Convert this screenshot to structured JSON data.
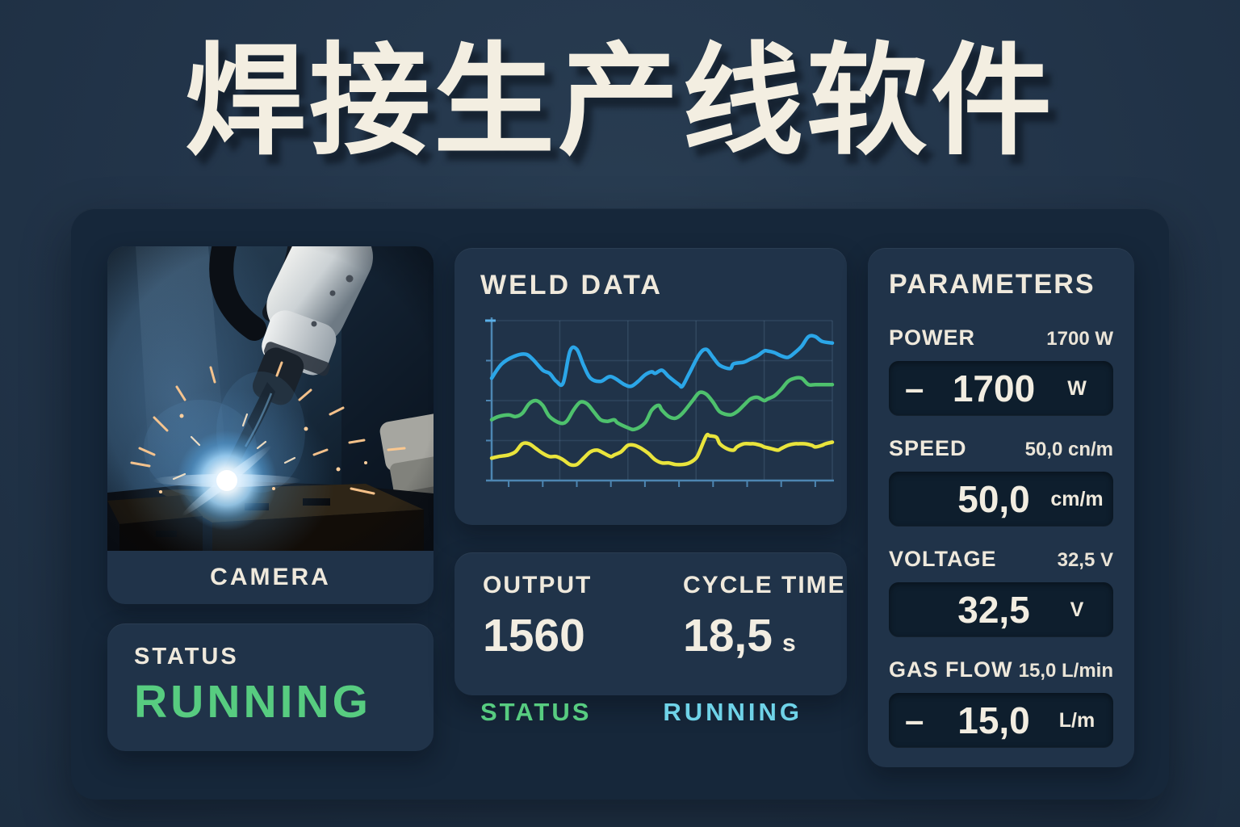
{
  "title": "焊接生产线软件",
  "colors": {
    "page_bg": "#223449",
    "panel_bg": "#16273a",
    "card_bg": "#203349",
    "input_bg": "#0e1e2d",
    "cream": "#efe9dc",
    "green": "#57cc80",
    "cyan": "#6fd3e8",
    "axis": "#4d86b2",
    "chart_blue": "#2ba6e8",
    "chart_green": "#4ec16d",
    "chart_yellow": "#e9e43c"
  },
  "camera": {
    "label": "CAMERA",
    "status_label": "STATUS",
    "status_value": "RUNNING"
  },
  "weld": {
    "title": "WELD DATA"
  },
  "chart_data": {
    "type": "line",
    "title": "WELD DATA",
    "xlabel": "",
    "ylabel": "",
    "grid": true,
    "legend_position": "none",
    "axis_tick_labels": "none (unlabeled live telemetry axes)",
    "x_range": [
      0,
      100
    ],
    "y_range_percent_of_plot_height_from_top": [
      0,
      100
    ],
    "series": [
      {
        "name": "signal-blue",
        "color": "#2ba6e8",
        "points": [
          [
            0,
            36
          ],
          [
            3,
            27
          ],
          [
            7,
            22
          ],
          [
            10,
            21
          ],
          [
            12,
            24
          ],
          [
            15,
            31
          ],
          [
            17,
            33
          ],
          [
            19,
            38
          ],
          [
            21,
            39
          ],
          [
            23,
            19
          ],
          [
            25,
            18
          ],
          [
            27,
            28
          ],
          [
            29,
            36
          ],
          [
            32,
            38
          ],
          [
            35,
            35
          ],
          [
            39,
            40
          ],
          [
            41,
            41
          ],
          [
            43,
            38
          ],
          [
            45,
            34
          ],
          [
            47,
            32
          ],
          [
            48,
            33
          ],
          [
            50,
            31
          ],
          [
            52,
            35
          ],
          [
            55,
            40
          ],
          [
            56,
            41
          ],
          [
            58,
            33
          ],
          [
            61,
            21
          ],
          [
            63,
            18
          ],
          [
            65,
            23
          ],
          [
            67,
            28
          ],
          [
            70,
            30
          ],
          [
            71,
            27
          ],
          [
            74,
            26
          ],
          [
            76,
            24
          ],
          [
            78,
            22
          ],
          [
            80,
            19
          ],
          [
            81,
            19
          ],
          [
            83,
            20
          ],
          [
            85,
            22
          ],
          [
            87,
            23
          ],
          [
            89,
            20
          ],
          [
            91,
            16
          ],
          [
            93,
            10
          ],
          [
            95,
            10
          ],
          [
            97,
            13
          ],
          [
            100,
            14
          ]
        ]
      },
      {
        "name": "signal-green",
        "color": "#4ec16d",
        "points": [
          [
            0,
            62
          ],
          [
            2,
            60
          ],
          [
            5,
            59
          ],
          [
            7,
            60
          ],
          [
            9,
            58
          ],
          [
            11,
            52
          ],
          [
            13,
            50
          ],
          [
            15,
            53
          ],
          [
            17,
            60
          ],
          [
            20,
            64
          ],
          [
            22,
            63
          ],
          [
            24,
            56
          ],
          [
            26,
            51
          ],
          [
            28,
            52
          ],
          [
            30,
            57
          ],
          [
            32,
            62
          ],
          [
            34,
            63
          ],
          [
            36,
            62
          ],
          [
            37,
            64
          ],
          [
            40,
            67
          ],
          [
            42,
            68
          ],
          [
            45,
            64
          ],
          [
            47,
            56
          ],
          [
            49,
            53
          ],
          [
            50,
            56
          ],
          [
            52,
            60
          ],
          [
            54,
            61
          ],
          [
            56,
            58
          ],
          [
            59,
            50
          ],
          [
            61,
            45
          ],
          [
            63,
            46
          ],
          [
            65,
            51
          ],
          [
            67,
            57
          ],
          [
            70,
            59
          ],
          [
            72,
            57
          ],
          [
            74,
            53
          ],
          [
            76,
            49
          ],
          [
            78,
            48
          ],
          [
            80,
            50
          ],
          [
            81,
            49
          ],
          [
            83,
            47
          ],
          [
            85,
            43
          ],
          [
            87,
            38
          ],
          [
            89,
            36
          ],
          [
            91,
            36
          ],
          [
            93,
            40
          ],
          [
            95,
            40
          ],
          [
            98,
            40
          ],
          [
            100,
            40
          ]
        ]
      },
      {
        "name": "signal-yellow",
        "color": "#e9e43c",
        "points": [
          [
            0,
            86
          ],
          [
            2,
            85
          ],
          [
            5,
            84
          ],
          [
            7,
            82
          ],
          [
            9,
            77
          ],
          [
            11,
            77
          ],
          [
            13,
            80
          ],
          [
            15,
            83
          ],
          [
            17,
            85
          ],
          [
            19,
            85
          ],
          [
            21,
            87
          ],
          [
            23,
            90
          ],
          [
            25,
            90
          ],
          [
            27,
            86
          ],
          [
            29,
            82
          ],
          [
            31,
            81
          ],
          [
            33,
            83
          ],
          [
            35,
            85
          ],
          [
            36,
            84
          ],
          [
            38,
            82
          ],
          [
            40,
            78
          ],
          [
            42,
            78
          ],
          [
            44,
            80
          ],
          [
            46,
            83
          ],
          [
            48,
            87
          ],
          [
            50,
            89
          ],
          [
            52,
            89
          ],
          [
            54,
            90
          ],
          [
            56,
            90
          ],
          [
            58,
            89
          ],
          [
            60,
            86
          ],
          [
            61,
            82
          ],
          [
            63,
            72
          ],
          [
            64,
            72
          ],
          [
            66,
            73
          ],
          [
            67,
            77
          ],
          [
            69,
            80
          ],
          [
            71,
            81
          ],
          [
            72,
            79
          ],
          [
            74,
            77
          ],
          [
            76,
            77
          ],
          [
            77,
            77
          ],
          [
            79,
            78
          ],
          [
            80,
            79
          ],
          [
            82,
            80
          ],
          [
            84,
            81
          ],
          [
            85,
            80
          ],
          [
            87,
            78
          ],
          [
            89,
            77
          ],
          [
            90,
            77
          ],
          [
            92,
            77
          ],
          [
            94,
            78
          ],
          [
            95,
            79
          ],
          [
            97,
            78
          ],
          [
            98,
            77
          ],
          [
            100,
            76
          ]
        ]
      }
    ]
  },
  "output_panel": {
    "output_label": "OUTPUT",
    "output_value": "1560",
    "cycle_label": "CYCLE TIME",
    "cycle_value": "18,5",
    "cycle_unit": "s",
    "status_label": "STATUS",
    "status_value": "RUNNING"
  },
  "parameters": {
    "title": "PARAMETERS",
    "stepper_minus": "–",
    "items": [
      {
        "name": "power",
        "label": "POWER",
        "summary": "1700 W",
        "has_minus": true,
        "value": "1700",
        "unit": "W"
      },
      {
        "name": "speed",
        "label": "SPEED",
        "summary": "50,0 cn/m",
        "has_minus": false,
        "value": "50,0",
        "unit": "cm/m"
      },
      {
        "name": "voltage",
        "label": "VOLTAGE",
        "summary": "32,5 V",
        "has_minus": false,
        "value": "32,5",
        "unit": "V"
      },
      {
        "name": "gas_flow",
        "label": "GAS FLOW",
        "summary": "15,0 L/min",
        "has_minus": true,
        "value": "15,0",
        "unit": "L/m"
      }
    ]
  }
}
